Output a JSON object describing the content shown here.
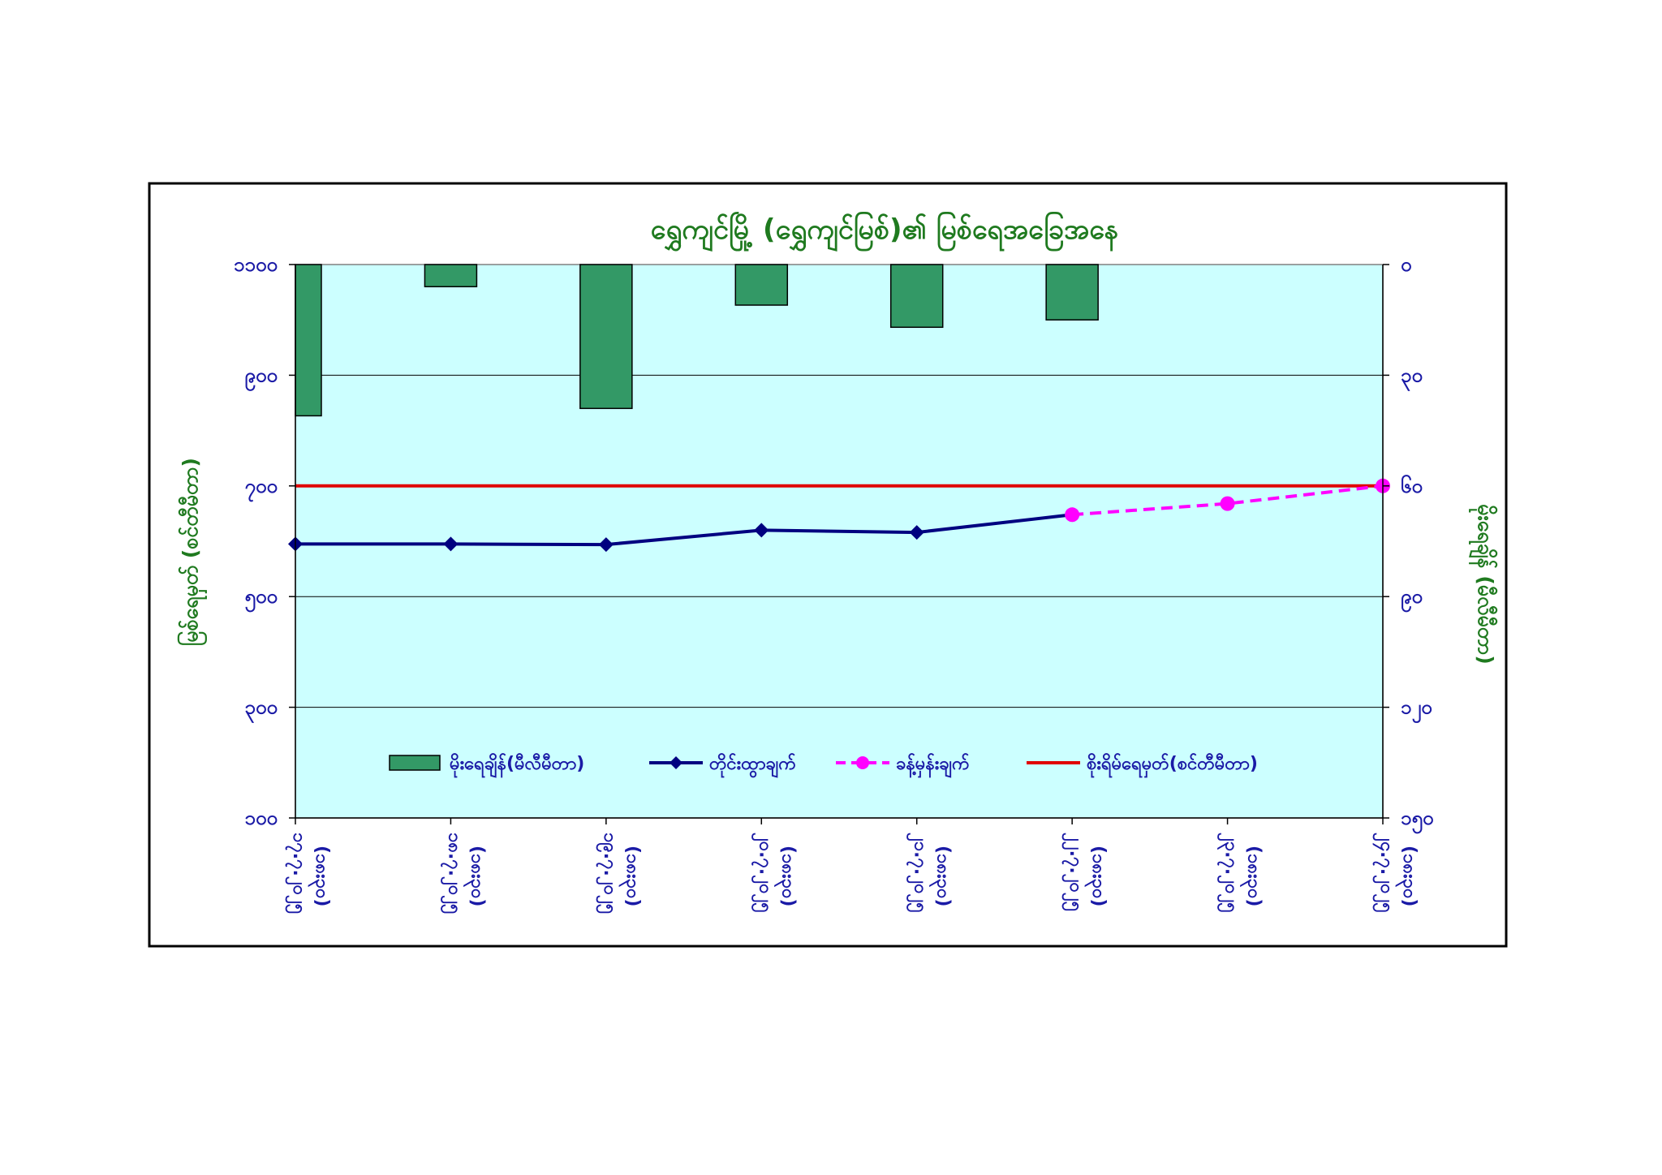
{
  "chart_data": {
    "type": "bar+line",
    "title": "ရွှေကျင်မြို့ (ရွှေကျင်မြစ်)၏ မြစ်ရေအခြေအနေ",
    "ylabel_left": "မြစ်ရေမှတ် (စင်တီမီတာ)",
    "ylabel_right": "မိုးရေချိန် (မီလီမီတာ)",
    "left_axis": {
      "min": 100,
      "max": 1100,
      "ticks": [
        "၁၁၀၀",
        "၉၀၀",
        "၇၀၀",
        "၅၀၀",
        "၃၀၀",
        "၁၀၀"
      ],
      "tick_values": [
        1100,
        900,
        700,
        500,
        300,
        100
      ]
    },
    "right_axis": {
      "min": 0,
      "max": 150,
      "inverted": true,
      "ticks": [
        "၀",
        "၃၀",
        "၆၀",
        "၉၀",
        "၁၂၀",
        "၁၅၀"
      ],
      "tick_values": [
        0,
        30,
        60,
        90,
        120,
        150
      ]
    },
    "grid": true,
    "legend_position": "bottom-inside",
    "categories": [
      {
        "date": "၁၇.၇.၂၀၂၅",
        "time": "(၁၈း၃၀)"
      },
      {
        "date": "၁၈.၇.၂၀၂၅",
        "time": "(၁၈း၃၀)"
      },
      {
        "date": "၁၉.၇.၂၀၂၅",
        "time": "(၁၈း၃၀)"
      },
      {
        "date": "၂၀.၇.၂၀၂၅",
        "time": "(၁၈း၃၀)"
      },
      {
        "date": "၂၁.၇.၂၀၂၅",
        "time": "(၁၈း၃၀)"
      },
      {
        "date": "၂၂.၇.၂၀၂၅",
        "time": "(၁၈း၃၀)"
      },
      {
        "date": "၂၃.၇.၂၀၂၅",
        "time": "(၁၈း၃၀)"
      },
      {
        "date": "၂၄.၇.၂၀၂၅",
        "time": "(၁၈း၃၀)"
      }
    ],
    "series": [
      {
        "name": "မိုးရေချိန်(မီလီမီတာ)",
        "kind": "bar",
        "axis": "right",
        "color": "#339966",
        "values": [
          41,
          6,
          39,
          11,
          17,
          15,
          null,
          null
        ]
      },
      {
        "name": "တိုင်းထွာချက်",
        "kind": "line",
        "axis": "left",
        "color": "#000080",
        "values": [
          595,
          595,
          594,
          620,
          616,
          648,
          null,
          null
        ]
      },
      {
        "name": "ခန့်မှန်းချက်",
        "kind": "line-dashed",
        "axis": "left",
        "color": "#ff00ff",
        "values": [
          null,
          null,
          null,
          null,
          null,
          648,
          668,
          700
        ]
      },
      {
        "name": "စိုးရိမ်ရေမှတ်(စင်တီမီတာ)",
        "kind": "hline",
        "axis": "left",
        "color": "#e00000",
        "value": 700
      }
    ]
  }
}
